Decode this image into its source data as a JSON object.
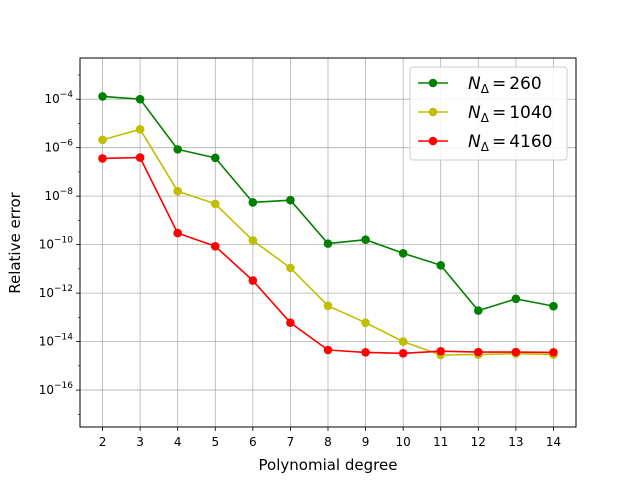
{
  "chart_data": {
    "type": "line",
    "title": "",
    "xlabel": "Polynomial degree",
    "ylabel": "Relative error",
    "yscale": "log",
    "grid": true,
    "legend_position": "top-right",
    "x": [
      2,
      3,
      4,
      5,
      6,
      7,
      8,
      9,
      10,
      11,
      12,
      13,
      14
    ],
    "xlim": [
      1.4,
      14.6
    ],
    "ylim": [
      3e-18,
      0.005
    ],
    "y_ticks": [
      {
        "value": 0.0001,
        "base": "10",
        "exp": "−4"
      },
      {
        "value": 1e-06,
        "base": "10",
        "exp": "−6"
      },
      {
        "value": 1e-08,
        "base": "10",
        "exp": "−8"
      },
      {
        "value": 1e-10,
        "base": "10",
        "exp": "−10"
      },
      {
        "value": 1e-12,
        "base": "10",
        "exp": "−12"
      },
      {
        "value": 1e-14,
        "base": "10",
        "exp": "−14"
      },
      {
        "value": 1e-16,
        "base": "10",
        "exp": "−16"
      }
    ],
    "series": [
      {
        "name": "260",
        "legend_prefix": "N",
        "legend_sub": "Δ",
        "legend_eq": "=",
        "color": "#008000",
        "values": [
          0.00013,
          0.0001,
          8.5e-07,
          3.8e-07,
          5.5e-09,
          6.8e-09,
          1.1e-10,
          1.6e-10,
          4.4e-11,
          1.4e-11,
          1.9e-13,
          5.8e-13,
          2.9e-13
        ]
      },
      {
        "name": "1040",
        "legend_prefix": "N",
        "legend_sub": "Δ",
        "legend_eq": "=",
        "color": "#bfbf00",
        "values": [
          2.1e-06,
          5.7e-06,
          1.6e-08,
          4.8e-09,
          1.5e-10,
          1.1e-11,
          3e-13,
          6e-14,
          1e-14,
          2.8e-15,
          2.9e-15,
          3.2e-15,
          2.9e-15
        ]
      },
      {
        "name": "4160",
        "legend_prefix": "N",
        "legend_sub": "Δ",
        "legend_eq": "=",
        "color": "#ff0000",
        "values": [
          3.6e-07,
          3.9e-07,
          3e-10,
          8.5e-11,
          3.3e-12,
          6e-14,
          4.5e-15,
          3.6e-15,
          3.3e-15,
          4e-15,
          3.7e-15,
          3.7e-15,
          3.6e-15
        ]
      }
    ]
  }
}
